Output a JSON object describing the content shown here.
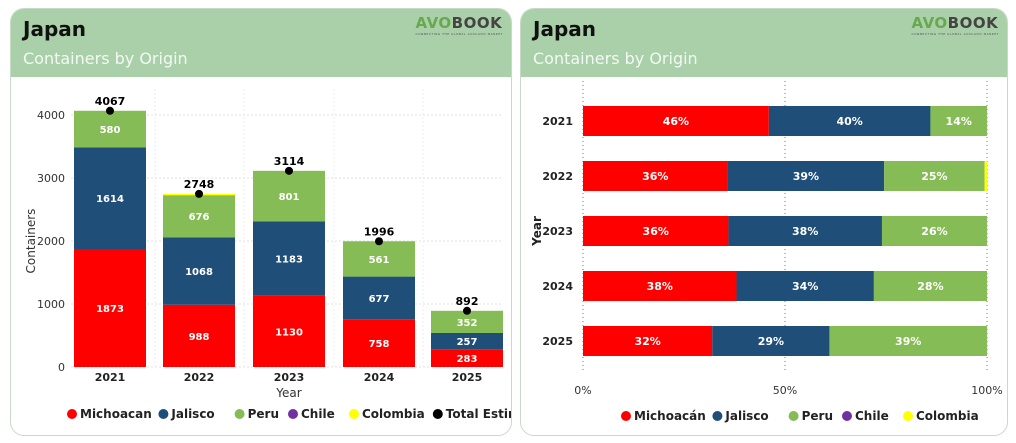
{
  "left": {
    "title": "Japan",
    "subtitle": "Containers by Origin",
    "logo": "AVOBOOK",
    "chart_data": {
      "type": "bar",
      "stacked": true,
      "categories": [
        "2021",
        "2022",
        "2023",
        "2024",
        "2025"
      ],
      "series": [
        {
          "name": "Michoacan",
          "color": "#ff0000",
          "values": [
            1873,
            988,
            1130,
            758,
            283
          ]
        },
        {
          "name": "Jalisco",
          "color": "#1f4e79",
          "values": [
            1614,
            1068,
            1183,
            677,
            257
          ]
        },
        {
          "name": "Peru",
          "color": "#86bc55",
          "values": [
            580,
            676,
            801,
            561,
            352
          ]
        },
        {
          "name": "Chile",
          "color": "#7030a0",
          "values": [
            0,
            0,
            0,
            0,
            0
          ]
        },
        {
          "name": "Colombia",
          "color": "#ffff00",
          "values": [
            0,
            16,
            0,
            0,
            0
          ]
        }
      ],
      "total": {
        "name": "Total Estimated",
        "color": "#000000",
        "values": [
          4067,
          2748,
          3114,
          1996,
          892
        ]
      },
      "xlabel": "Year",
      "ylabel": "Containers",
      "ylim": [
        0,
        4000
      ],
      "yticks": [
        0,
        1000,
        2000,
        3000,
        4000
      ],
      "grid": true,
      "legend": "bottom"
    }
  },
  "right": {
    "title": "Japan",
    "subtitle": "Containers by Origin",
    "logo": "AVOBOOK",
    "chart_data": {
      "type": "bar",
      "orientation": "horizontal",
      "stacked": "100%",
      "categories": [
        "2021",
        "2022",
        "2023",
        "2024",
        "2025"
      ],
      "series": [
        {
          "name": "Michoacán",
          "color": "#ff0000",
          "values": [
            46,
            36,
            36,
            38,
            32
          ]
        },
        {
          "name": "Jalisco",
          "color": "#1f4e79",
          "values": [
            40,
            39,
            38,
            34,
            29
          ]
        },
        {
          "name": "Peru",
          "color": "#86bc55",
          "values": [
            14,
            25,
            26,
            28,
            39
          ]
        },
        {
          "name": "Chile",
          "color": "#7030a0",
          "values": [
            0,
            0,
            0,
            0,
            0
          ]
        },
        {
          "name": "Colombia",
          "color": "#ffff00",
          "values": [
            0,
            0.6,
            0,
            0,
            0
          ]
        }
      ],
      "ylabel": "Year",
      "xticks": [
        "0%",
        "50%",
        "100%"
      ],
      "xlim": [
        0,
        100
      ],
      "grid": true,
      "legend": "bottom"
    }
  }
}
